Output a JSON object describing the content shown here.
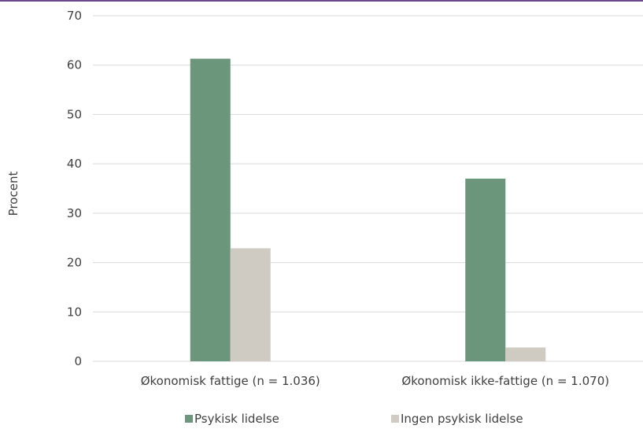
{
  "chart_data": {
    "type": "bar",
    "categories": [
      "Økonomisk fattige (n = 1.036)",
      "Økonomisk ikke-fattige (n = 1.070)"
    ],
    "series": [
      {
        "name": "Psykisk lidelse",
        "values": [
          61.3,
          37.0
        ],
        "color": "#6b967c"
      },
      {
        "name": "Ingen psykisk lidelse",
        "values": [
          22.9,
          2.8
        ],
        "color": "#cfcbc2"
      }
    ],
    "ylabel": "Procent",
    "ylim": [
      0,
      70
    ],
    "yticks": [
      0,
      10,
      20,
      30,
      40,
      50,
      60,
      70
    ],
    "grid": true,
    "legend_position": "bottom"
  }
}
